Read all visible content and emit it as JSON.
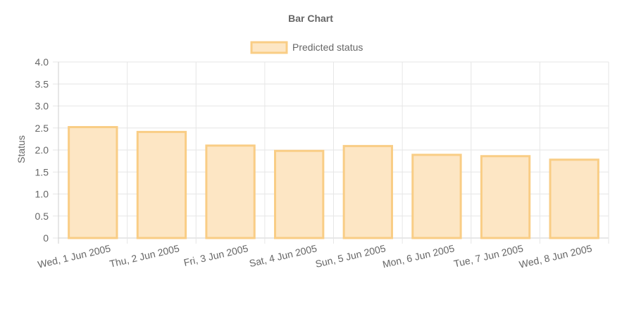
{
  "chart_data": {
    "type": "bar",
    "title": "Bar Chart",
    "xlabel": "",
    "ylabel": "Status",
    "ylim": [
      0,
      4
    ],
    "yticks": [
      "0",
      "0.5",
      "1.0",
      "1.5",
      "2.0",
      "2.5",
      "3.0",
      "3.5",
      "4.0"
    ],
    "grid": true,
    "legend_position": "top-center",
    "categories": [
      "Wed, 1 Jun 2005",
      "Thu, 2 Jun 2005",
      "Fri, 3 Jun 2005",
      "Sat, 4 Jun 2005",
      "Sun, 5 Jun 2005",
      "Mon, 6 Jun 2005",
      "Tue, 7 Jun 2005",
      "Wed, 8 Jun 2005"
    ],
    "series": [
      {
        "name": "Predicted status",
        "values": [
          2.52,
          2.41,
          2.1,
          1.98,
          2.09,
          1.89,
          1.86,
          1.78
        ],
        "fill_color": "#fde6c4",
        "border_color": "#f9cd85"
      }
    ]
  }
}
